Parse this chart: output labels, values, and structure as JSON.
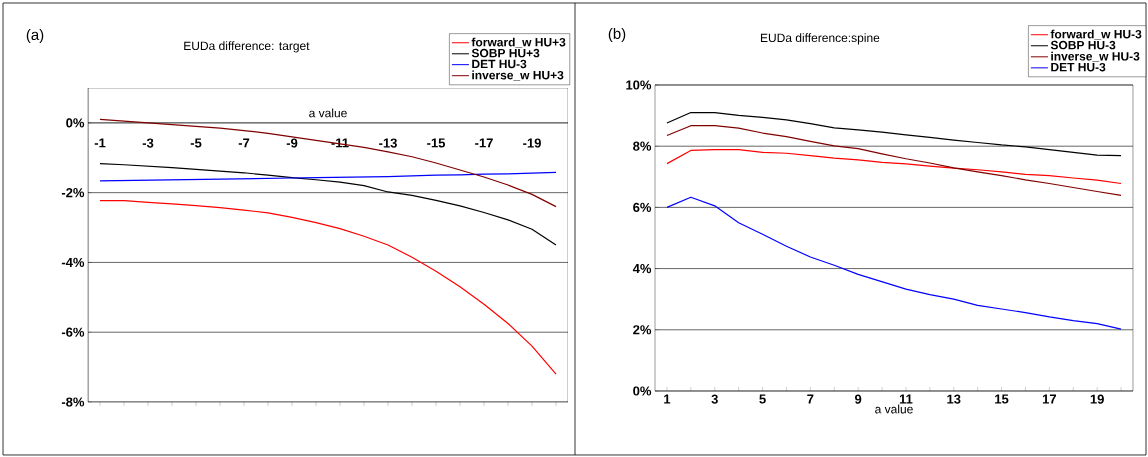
{
  "chart_data": [
    {
      "type": "line",
      "title": "EUDa difference: target",
      "xlabel": "a value",
      "annotations": [
        "(a)"
      ],
      "categories": [
        "-1",
        null,
        "-3",
        null,
        "-5",
        null,
        "-7",
        null,
        "-9",
        null,
        "-11",
        null,
        "-13",
        null,
        "-15",
        null,
        "-17",
        null,
        "-19",
        null
      ],
      "series": [
        {
          "name": "forward_w HU+3",
          "color": "#ff0000",
          "values": [
            -2.23,
            -2.23,
            -2.28,
            -2.32,
            -2.37,
            -2.43,
            -2.5,
            -2.58,
            -2.71,
            -2.86,
            -3.03,
            -3.25,
            -3.5,
            -3.85,
            -4.25,
            -4.7,
            -5.2,
            -5.75,
            -6.4,
            -7.2
          ]
        },
        {
          "name": "SOBP HU+3",
          "color": "#000000",
          "values": [
            -1.17,
            -1.2,
            -1.24,
            -1.28,
            -1.33,
            -1.38,
            -1.43,
            -1.5,
            -1.57,
            -1.63,
            -1.7,
            -1.8,
            -1.98,
            -2.08,
            -2.22,
            -2.38,
            -2.57,
            -2.78,
            -3.05,
            -3.5
          ]
        },
        {
          "name": "DET HU-3",
          "color": "#0000ff",
          "values": [
            -1.66,
            -1.65,
            -1.64,
            -1.63,
            -1.62,
            -1.61,
            -1.6,
            -1.59,
            -1.58,
            -1.57,
            -1.56,
            -1.55,
            -1.54,
            -1.52,
            -1.5,
            -1.49,
            -1.47,
            -1.46,
            -1.44,
            -1.42
          ]
        },
        {
          "name": "inverse_w HU+3",
          "color": "#800000",
          "values": [
            0.1,
            0.05,
            0.0,
            -0.05,
            -0.1,
            -0.15,
            -0.22,
            -0.3,
            -0.4,
            -0.5,
            -0.6,
            -0.7,
            -0.83,
            -0.97,
            -1.15,
            -1.35,
            -1.55,
            -1.78,
            -2.05,
            -2.4
          ]
        }
      ],
      "ylim": [
        -8,
        1
      ],
      "yticks": [
        {
          "value": -8,
          "label": "-8%"
        },
        {
          "value": -6,
          "label": "-6%"
        },
        {
          "value": -4,
          "label": "-4%"
        },
        {
          "value": -2,
          "label": "-2%"
        },
        {
          "value": 0,
          "label": "0%"
        }
      ],
      "grid": "y",
      "legend": "top right"
    },
    {
      "type": "line",
      "title": "EUDa difference:spine",
      "xlabel": "a value",
      "annotations": [
        "(b)"
      ],
      "categories": [
        "1",
        null,
        "3",
        null,
        "5",
        null,
        "7",
        null,
        "9",
        null,
        "11",
        null,
        "13",
        null,
        "15",
        null,
        "17",
        null,
        "19",
        null
      ],
      "series": [
        {
          "name": "forward_w HU-3",
          "color": "#ff0000",
          "values": [
            7.43,
            7.86,
            7.89,
            7.89,
            7.8,
            7.77,
            7.69,
            7.61,
            7.55,
            7.47,
            7.42,
            7.35,
            7.28,
            7.23,
            7.16,
            7.08,
            7.04,
            6.96,
            6.89,
            6.78
          ]
        },
        {
          "name": "SOBP HU-3",
          "color": "#000000",
          "values": [
            8.76,
            9.1,
            9.1,
            9.01,
            8.94,
            8.86,
            8.74,
            8.6,
            8.53,
            8.46,
            8.37,
            8.29,
            8.2,
            8.12,
            8.04,
            7.98,
            7.89,
            7.8,
            7.71,
            7.69
          ]
        },
        {
          "name": "inverse_w HU-3",
          "color": "#800000",
          "values": [
            8.35,
            8.67,
            8.67,
            8.59,
            8.43,
            8.31,
            8.16,
            8.01,
            7.92,
            7.75,
            7.59,
            7.45,
            7.29,
            7.16,
            7.04,
            6.9,
            6.78,
            6.65,
            6.52,
            6.39
          ]
        },
        {
          "name": "DET HU-3",
          "color": "#0000ff",
          "values": [
            6.0,
            6.33,
            6.05,
            5.5,
            5.12,
            4.73,
            4.38,
            4.11,
            3.81,
            3.57,
            3.33,
            3.15,
            3.0,
            2.8,
            2.68,
            2.56,
            2.42,
            2.3,
            2.2,
            2.02
          ]
        }
      ],
      "ylim": [
        0,
        10
      ],
      "yticks": [
        {
          "value": 0,
          "label": "0%"
        },
        {
          "value": 2,
          "label": "2%"
        },
        {
          "value": 4,
          "label": "4%"
        },
        {
          "value": 6,
          "label": "6%"
        },
        {
          "value": 8,
          "label": "8%"
        },
        {
          "value": 10,
          "label": "10%"
        }
      ],
      "grid": "y",
      "legend": "top right"
    }
  ]
}
